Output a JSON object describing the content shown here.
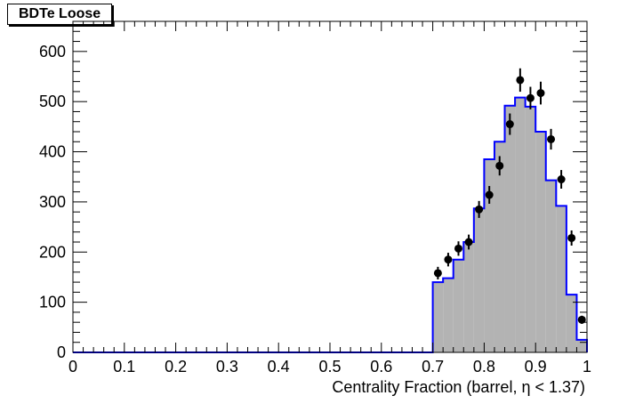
{
  "chart_data": {
    "type": "histogram",
    "title": "BDTe Loose",
    "xlabel": "Centrality Fraction (barrel,  η < 1.37)",
    "ylabel": "",
    "xlim": [
      0,
      1
    ],
    "ylim": [
      0,
      660
    ],
    "x_ticks": [
      "0",
      "0.1",
      "0.2",
      "0.3",
      "0.4",
      "0.5",
      "0.6",
      "0.7",
      "0.8",
      "0.9",
      "1"
    ],
    "y_ticks": [
      "0",
      "100",
      "200",
      "300",
      "400",
      "500",
      "600"
    ],
    "bin_width": 0.02,
    "grid": false,
    "legend": "none",
    "series": [
      {
        "kind": "mc-histogram",
        "fill_color": "#b3b3b3",
        "line_color": "#0000ff",
        "bins_x_low": [
          0.7,
          0.72,
          0.74,
          0.76,
          0.78,
          0.8,
          0.82,
          0.84,
          0.86,
          0.88,
          0.9,
          0.92,
          0.94,
          0.96,
          0.98
        ],
        "values": [
          140,
          148,
          185,
          220,
          287,
          385,
          420,
          492,
          508,
          490,
          440,
          343,
          292,
          115,
          25
        ]
      },
      {
        "kind": "data-points",
        "marker_color": "#000000",
        "x": [
          0.71,
          0.73,
          0.75,
          0.77,
          0.79,
          0.81,
          0.83,
          0.85,
          0.87,
          0.89,
          0.91,
          0.93,
          0.95,
          0.97,
          0.99
        ],
        "values": [
          158,
          185,
          207,
          220,
          285,
          314,
          372,
          455,
          543,
          507,
          517,
          425,
          345,
          228,
          65
        ]
      }
    ]
  }
}
